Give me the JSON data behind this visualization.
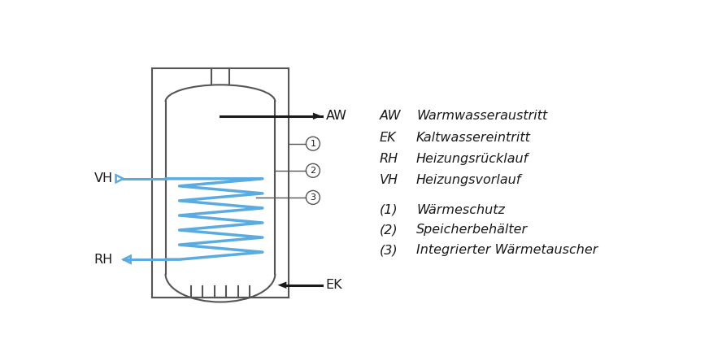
{
  "bg_color": "#ffffff",
  "tank_color": "#555555",
  "black_color": "#1a1a1a",
  "blue_color": "#5aabe0",
  "legend_items_abbr": [
    "AW",
    "EK",
    "RH",
    "VH",
    "(1)",
    "(2)",
    "(3)"
  ],
  "legend_items_desc": [
    "Warmwasseraustritt",
    "Kaltwassereintritt",
    "Heizungsrücklauf",
    "Heizungsvorlauf",
    "Wärmeschutz",
    "Speicherbehälter",
    "Integrierter Wärmetauscher"
  ],
  "font_size": 11.5
}
